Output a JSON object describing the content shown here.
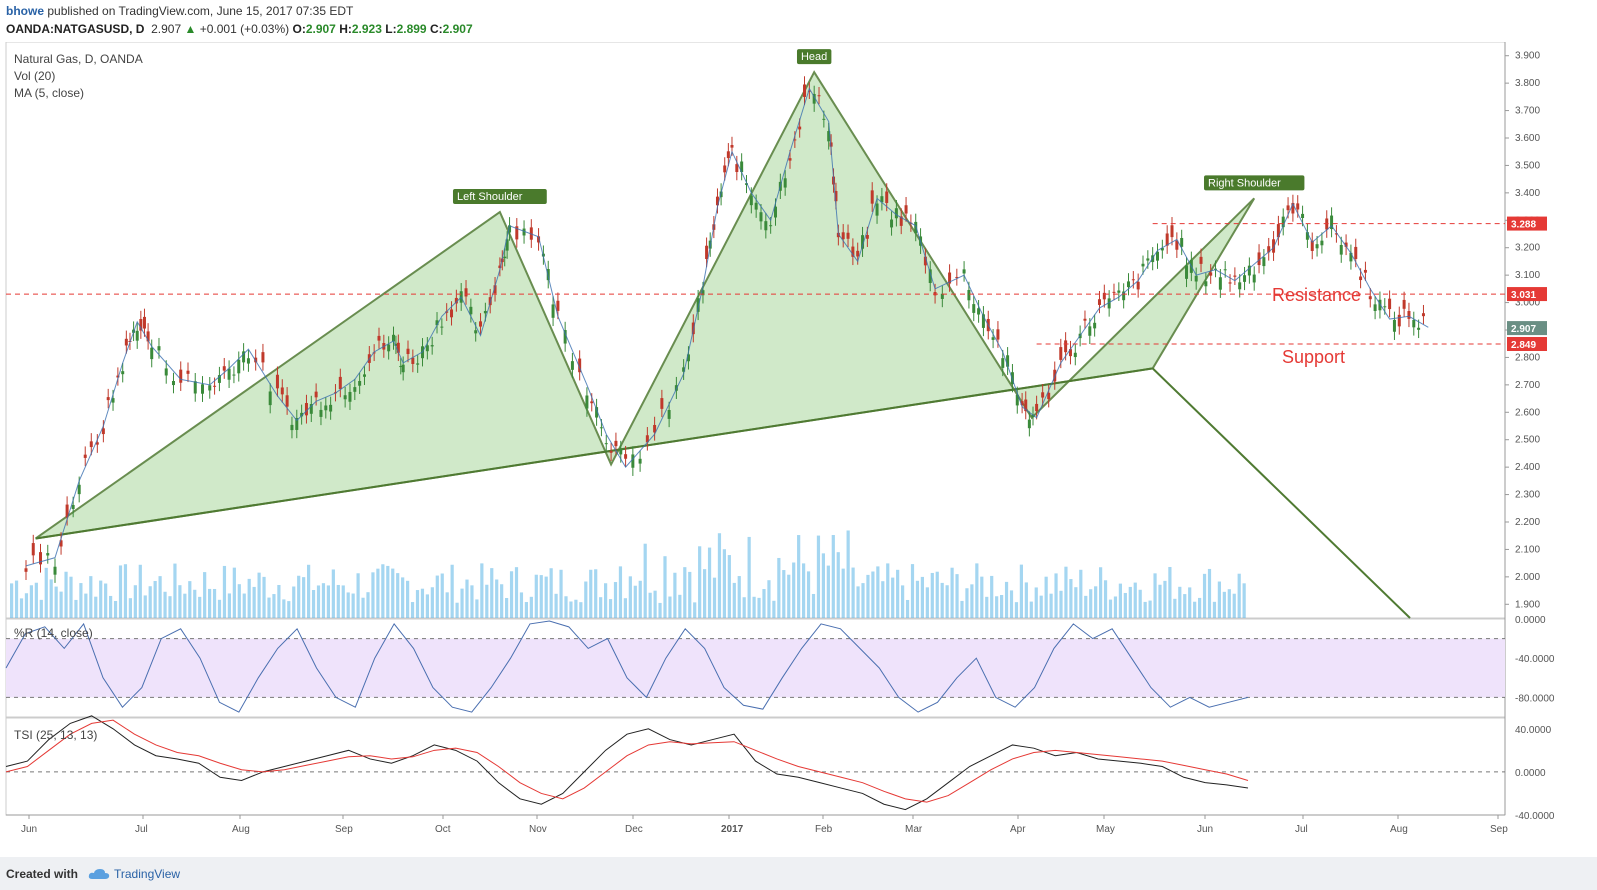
{
  "header": {
    "user": "bhowe",
    "published": "published on TradingView.com, June 15, 2017 07:35 EDT",
    "symbol": "OANDA:NATGASUSD, D",
    "price": "2.907",
    "change": "+0.001 (+0.03%)",
    "o_label": "O:",
    "o": "2.907",
    "h_label": "H:",
    "h": "2.923",
    "l_label": "L:",
    "l": "2.899",
    "c_label": "C:",
    "c": "2.907"
  },
  "legend": {
    "title": "Natural Gas, D, OANDA",
    "vol": "Vol (20)",
    "ma": "MA (5, close)",
    "wr": "%R (14, close)",
    "tsi": "TSI (25, 13, 13)"
  },
  "footer": {
    "created": "Created with",
    "brand": "TradingView"
  },
  "colors": {
    "up": "#3a8a3a",
    "down": "#c0392b",
    "pattern_fill": "#c8e6c0",
    "pattern_stroke": "#4f7a32",
    "resistance": "#e53935",
    "volume": "#5ab4e6",
    "wr_band": "#efe3fb",
    "tsi": "#222222",
    "tsi_signal": "#e53935"
  },
  "chart_data": [
    {
      "type": "candlestick",
      "title": "Natural Gas, D, OANDA",
      "ylim": [
        1.85,
        3.95
      ],
      "y_ticks": [
        "3.900",
        "3.800",
        "3.700",
        "3.600",
        "3.500",
        "3.400",
        "3.300",
        "3.200",
        "3.100",
        "3.000",
        "2.900",
        "2.800",
        "2.700",
        "2.600",
        "2.500",
        "2.400",
        "2.300",
        "2.200",
        "2.100",
        "2.000",
        "1.900"
      ],
      "x_ticks": [
        "Jun",
        "Jul",
        "Aug",
        "Sep",
        "Oct",
        "Nov",
        "Dec",
        "2017",
        "Feb",
        "Mar",
        "Apr",
        "May",
        "Jun",
        "Jul",
        "Aug",
        "Sep"
      ],
      "series": [
        {
          "name": "price",
          "points": [
            [
              0,
              2.04
            ],
            [
              0.3,
              2.07
            ],
            [
              0.55,
              2.35
            ],
            [
              0.8,
              2.55
            ],
            [
              1.0,
              2.78
            ],
            [
              1.15,
              2.93
            ],
            [
              1.3,
              2.84
            ],
            [
              1.6,
              2.72
            ],
            [
              1.9,
              2.7
            ],
            [
              2.1,
              2.76
            ],
            [
              2.3,
              2.83
            ],
            [
              2.6,
              2.66
            ],
            [
              2.8,
              2.57
            ],
            [
              3.0,
              2.64
            ],
            [
              3.2,
              2.67
            ],
            [
              3.4,
              2.72
            ],
            [
              3.6,
              2.82
            ],
            [
              3.8,
              2.86
            ],
            [
              3.9,
              2.78
            ],
            [
              4.1,
              2.82
            ],
            [
              4.3,
              2.95
            ],
            [
              4.5,
              3.02
            ],
            [
              4.7,
              2.88
            ],
            [
              4.9,
              3.12
            ],
            [
              5.0,
              3.28
            ],
            [
              5.3,
              3.24
            ],
            [
              5.5,
              2.95
            ],
            [
              5.8,
              2.7
            ],
            [
              6.0,
              2.52
            ],
            [
              6.2,
              2.4
            ],
            [
              6.5,
              2.52
            ],
            [
              6.8,
              2.74
            ],
            [
              7.0,
              3.06
            ],
            [
              7.15,
              3.35
            ],
            [
              7.3,
              3.55
            ],
            [
              7.5,
              3.4
            ],
            [
              7.7,
              3.3
            ],
            [
              7.9,
              3.55
            ],
            [
              8.1,
              3.78
            ],
            [
              8.3,
              3.66
            ],
            [
              8.4,
              3.25
            ],
            [
              8.6,
              3.15
            ],
            [
              8.8,
              3.38
            ],
            [
              9.0,
              3.32
            ],
            [
              9.2,
              3.28
            ],
            [
              9.4,
              3.05
            ],
            [
              9.7,
              3.1
            ],
            [
              9.9,
              2.95
            ],
            [
              10.1,
              2.82
            ],
            [
              10.3,
              2.62
            ],
            [
              10.45,
              2.58
            ],
            [
              10.7,
              2.78
            ],
            [
              10.9,
              2.88
            ],
            [
              11.1,
              2.98
            ],
            [
              11.3,
              3.02
            ],
            [
              11.5,
              3.08
            ],
            [
              11.7,
              3.19
            ],
            [
              11.9,
              3.23
            ],
            [
              12.1,
              3.1
            ],
            [
              12.3,
              3.12
            ],
            [
              12.5,
              3.08
            ],
            [
              12.7,
              3.14
            ],
            [
              12.9,
              3.2
            ],
            [
              13.1,
              3.36
            ],
            [
              13.3,
              3.22
            ],
            [
              13.5,
              3.28
            ],
            [
              13.7,
              3.18
            ],
            [
              13.9,
              3.05
            ],
            [
              14.1,
              2.94
            ],
            [
              14.3,
              2.95
            ],
            [
              14.5,
              2.91
            ]
          ]
        }
      ],
      "annotations": [
        "Left Shoulder",
        "Head",
        "Right Shoulder",
        "Resistance",
        "Support"
      ],
      "levels": [
        {
          "label": "3.288",
          "value": 3.288
        },
        {
          "label": "3.031",
          "value": 3.031
        },
        {
          "label": "2.849",
          "value": 2.849
        }
      ],
      "last_price": "2.907"
    },
    {
      "type": "line",
      "title": "%R (14, close)",
      "ylim": [
        -100,
        0
      ],
      "y_ticks": [
        "0.0000",
        "-40.0000",
        "-80.0000"
      ],
      "levels": [
        -20,
        -80
      ],
      "series": [
        {
          "values": [
            -50,
            -15,
            -8,
            -30,
            -5,
            -60,
            -90,
            -70,
            -20,
            -10,
            -40,
            -85,
            -95,
            -60,
            -30,
            -10,
            -50,
            -80,
            -90,
            -40,
            -5,
            -30,
            -70,
            -90,
            -95,
            -70,
            -40,
            -5,
            -2,
            -8,
            -30,
            -20,
            -60,
            -80,
            -40,
            -10,
            -30,
            -70,
            -88,
            -92,
            -60,
            -30,
            -5,
            -10,
            -30,
            -50,
            -80,
            -95,
            -85,
            -60,
            -40,
            -80,
            -90,
            -70,
            -30,
            -5,
            -20,
            -10,
            -40,
            -70,
            -90,
            -80,
            -90,
            -85,
            -80
          ]
        }
      ]
    },
    {
      "type": "line",
      "title": "TSI (25, 13, 13)",
      "ylim": [
        -40,
        50
      ],
      "y_ticks": [
        "40.0000",
        "0.0000",
        "-40.0000"
      ],
      "series": [
        {
          "values": [
            5,
            10,
            30,
            45,
            52,
            40,
            25,
            15,
            12,
            8,
            -5,
            -8,
            0,
            5,
            10,
            15,
            20,
            12,
            8,
            15,
            25,
            20,
            10,
            -10,
            -25,
            -30,
            -20,
            0,
            20,
            35,
            40,
            30,
            25,
            30,
            35,
            10,
            -2,
            -5,
            -10,
            -15,
            -20,
            -30,
            -35,
            -25,
            -10,
            5,
            15,
            25,
            22,
            15,
            18,
            12,
            10,
            8,
            5,
            -5,
            -10,
            -12,
            -15
          ]
        },
        {
          "values": [
            0,
            5,
            20,
            35,
            45,
            48,
            35,
            25,
            18,
            15,
            8,
            2,
            0,
            2,
            6,
            10,
            14,
            15,
            12,
            14,
            20,
            22,
            18,
            5,
            -10,
            -20,
            -25,
            -15,
            0,
            15,
            25,
            28,
            26,
            27,
            28,
            20,
            12,
            5,
            0,
            -5,
            -10,
            -18,
            -25,
            -28,
            -22,
            -10,
            2,
            12,
            18,
            20,
            18,
            16,
            14,
            12,
            10,
            6,
            2,
            -2,
            -8
          ]
        }
      ]
    }
  ]
}
